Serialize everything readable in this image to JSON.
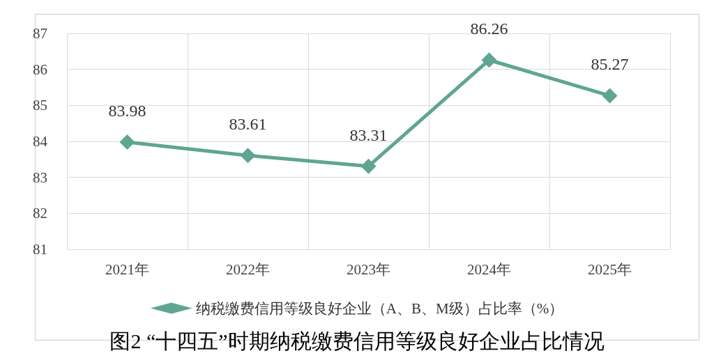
{
  "chart_data": {
    "type": "line",
    "categories": [
      "2021年",
      "2022年",
      "2023年",
      "2024年",
      "2025年"
    ],
    "series": [
      {
        "name": "纳税缴费信用等级良好企业（A、B、M级）占比率（%）",
        "color": "#5fa592",
        "values": [
          83.98,
          83.61,
          83.31,
          86.26,
          85.27
        ]
      }
    ],
    "ylim": [
      81,
      87
    ],
    "yticks": [
      81,
      82,
      83,
      84,
      85,
      86,
      87
    ],
    "grid": true,
    "legend": "bottom",
    "marker": "diamond",
    "data_labels": true,
    "annotations": [
      "图2 “十四五”时期纳税缴费信用等级良好企业占比情况"
    ]
  }
}
